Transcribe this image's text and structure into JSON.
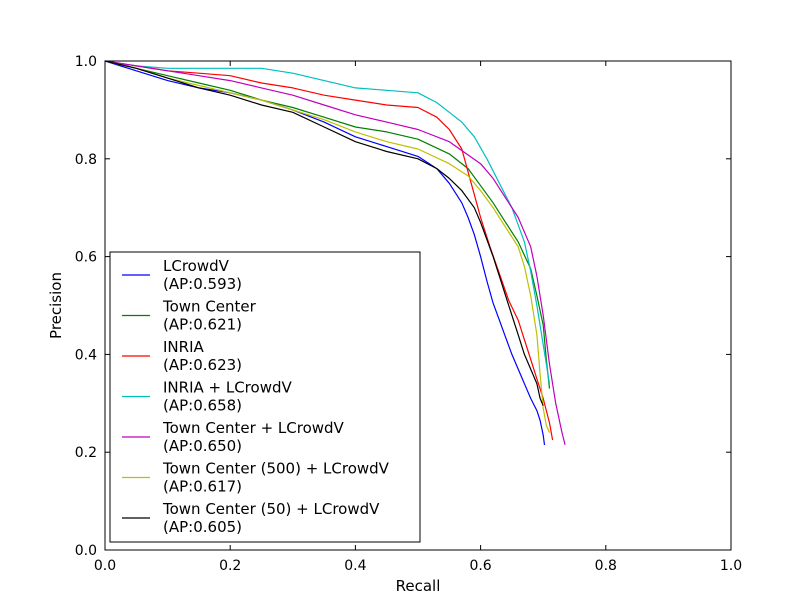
{
  "chart_data": {
    "type": "line",
    "title": "",
    "xlabel": "Recall",
    "ylabel": "Precision",
    "xlim": [
      0.0,
      1.0
    ],
    "ylim": [
      0.0,
      1.0
    ],
    "xticks": [
      "0.0",
      "0.2",
      "0.4",
      "0.6",
      "0.8",
      "1.0"
    ],
    "yticks": [
      "0.0",
      "0.2",
      "0.4",
      "0.6",
      "0.8",
      "1.0"
    ],
    "grid": false,
    "legend_position": "lower-left",
    "series": [
      {
        "name": "LCrowdV",
        "ap": "(AP:0.593)",
        "color": "#0000ff",
        "x": [
          0.0,
          0.05,
          0.1,
          0.15,
          0.2,
          0.25,
          0.3,
          0.35,
          0.4,
          0.45,
          0.5,
          0.53,
          0.55,
          0.57,
          0.58,
          0.59,
          0.6,
          0.61,
          0.62,
          0.63,
          0.64,
          0.65,
          0.66,
          0.67,
          0.68,
          0.69,
          0.695,
          0.7,
          0.702
        ],
        "y": [
          1.0,
          0.98,
          0.96,
          0.945,
          0.935,
          0.92,
          0.9,
          0.875,
          0.845,
          0.825,
          0.805,
          0.78,
          0.75,
          0.71,
          0.68,
          0.645,
          0.6,
          0.55,
          0.505,
          0.47,
          0.435,
          0.4,
          0.37,
          0.34,
          0.31,
          0.285,
          0.265,
          0.235,
          0.215
        ]
      },
      {
        "name": "Town Center",
        "ap": "(AP:0.621)",
        "color": "#008000",
        "x": [
          0.0,
          0.05,
          0.1,
          0.15,
          0.2,
          0.25,
          0.3,
          0.35,
          0.4,
          0.45,
          0.5,
          0.55,
          0.58,
          0.6,
          0.62,
          0.64,
          0.66,
          0.68,
          0.69,
          0.7,
          0.705,
          0.71
        ],
        "y": [
          1.0,
          0.985,
          0.97,
          0.955,
          0.94,
          0.92,
          0.905,
          0.885,
          0.865,
          0.855,
          0.84,
          0.81,
          0.78,
          0.745,
          0.71,
          0.67,
          0.63,
          0.575,
          0.52,
          0.46,
          0.39,
          0.33
        ]
      },
      {
        "name": "INRIA",
        "ap": "(AP:0.623)",
        "color": "#ff0000",
        "x": [
          0.0,
          0.05,
          0.1,
          0.15,
          0.2,
          0.25,
          0.3,
          0.35,
          0.4,
          0.45,
          0.5,
          0.53,
          0.55,
          0.57,
          0.585,
          0.6,
          0.615,
          0.63,
          0.645,
          0.66,
          0.67,
          0.68,
          0.69,
          0.7,
          0.71,
          0.715
        ],
        "y": [
          1.0,
          0.99,
          0.98,
          0.975,
          0.97,
          0.955,
          0.945,
          0.93,
          0.92,
          0.91,
          0.905,
          0.885,
          0.86,
          0.82,
          0.75,
          0.68,
          0.62,
          0.565,
          0.51,
          0.47,
          0.43,
          0.39,
          0.35,
          0.31,
          0.26,
          0.225
        ]
      },
      {
        "name": "INRIA + LCrowdV",
        "ap": "(AP:0.658)",
        "color": "#00bfbf",
        "x": [
          0.0,
          0.05,
          0.1,
          0.15,
          0.2,
          0.25,
          0.3,
          0.35,
          0.4,
          0.45,
          0.5,
          0.53,
          0.55,
          0.57,
          0.59,
          0.61,
          0.63,
          0.65,
          0.67,
          0.68,
          0.69,
          0.7,
          0.71
        ],
        "y": [
          1.0,
          0.99,
          0.985,
          0.985,
          0.985,
          0.985,
          0.975,
          0.96,
          0.945,
          0.94,
          0.935,
          0.915,
          0.895,
          0.875,
          0.845,
          0.8,
          0.75,
          0.7,
          0.63,
          0.57,
          0.5,
          0.42,
          0.34
        ]
      },
      {
        "name": "Town Center + LCrowdV",
        "ap": "(AP:0.650)",
        "color": "#bf00bf",
        "x": [
          0.0,
          0.05,
          0.1,
          0.15,
          0.2,
          0.25,
          0.3,
          0.35,
          0.4,
          0.45,
          0.5,
          0.55,
          0.6,
          0.62,
          0.64,
          0.66,
          0.68,
          0.69,
          0.7,
          0.71,
          0.72,
          0.73,
          0.735
        ],
        "y": [
          1.0,
          0.99,
          0.98,
          0.97,
          0.96,
          0.945,
          0.93,
          0.91,
          0.89,
          0.875,
          0.86,
          0.835,
          0.79,
          0.76,
          0.72,
          0.68,
          0.62,
          0.56,
          0.48,
          0.38,
          0.3,
          0.24,
          0.215
        ]
      },
      {
        "name": "Town Center (500) + LCrowdV",
        "ap": "(AP:0.617)",
        "color": "#bfbf00",
        "x": [
          0.0,
          0.05,
          0.1,
          0.15,
          0.2,
          0.25,
          0.3,
          0.35,
          0.4,
          0.45,
          0.5,
          0.55,
          0.58,
          0.6,
          0.62,
          0.64,
          0.66,
          0.67,
          0.68,
          0.69,
          0.695,
          0.7,
          0.705,
          0.71
        ],
        "y": [
          1.0,
          0.985,
          0.965,
          0.95,
          0.935,
          0.92,
          0.9,
          0.88,
          0.855,
          0.835,
          0.82,
          0.79,
          0.765,
          0.735,
          0.7,
          0.66,
          0.62,
          0.58,
          0.52,
          0.44,
          0.36,
          0.29,
          0.255,
          0.24
        ]
      },
      {
        "name": "Town Center (50) + LCrowdV",
        "ap": "(AP:0.605)",
        "color": "#000000",
        "x": [
          0.0,
          0.05,
          0.1,
          0.15,
          0.2,
          0.25,
          0.3,
          0.35,
          0.4,
          0.45,
          0.5,
          0.53,
          0.55,
          0.57,
          0.59,
          0.6,
          0.61,
          0.62,
          0.63,
          0.64,
          0.65,
          0.66,
          0.67,
          0.68,
          0.69,
          0.695,
          0.7
        ],
        "y": [
          1.0,
          0.985,
          0.965,
          0.945,
          0.93,
          0.91,
          0.895,
          0.865,
          0.835,
          0.815,
          0.8,
          0.78,
          0.76,
          0.735,
          0.7,
          0.67,
          0.635,
          0.6,
          0.56,
          0.52,
          0.48,
          0.44,
          0.4,
          0.37,
          0.34,
          0.31,
          0.295
        ]
      }
    ]
  }
}
